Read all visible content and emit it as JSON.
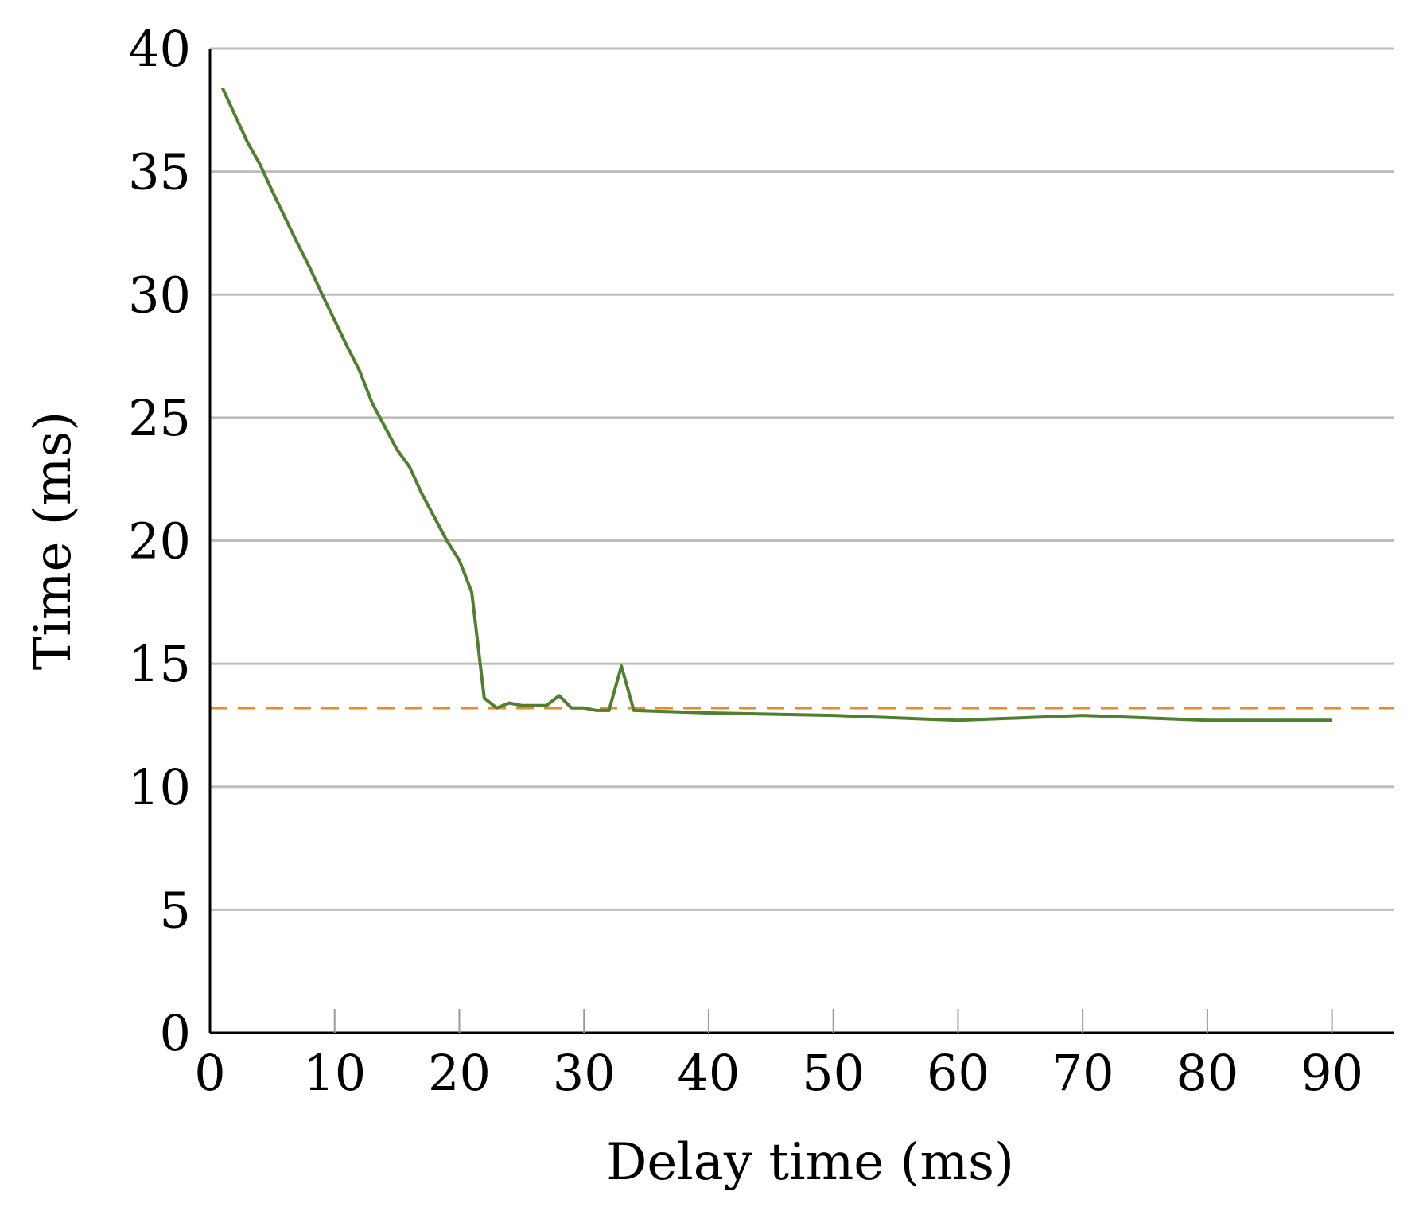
{
  "chart_data": {
    "type": "line",
    "title": "",
    "xlabel": "Delay time (ms)",
    "ylabel": "Time (ms)",
    "xlim": [
      0,
      95
    ],
    "ylim": [
      0,
      40
    ],
    "xticks": [
      0,
      10,
      20,
      30,
      40,
      50,
      60,
      70,
      80,
      90
    ],
    "yticks": [
      0,
      5,
      10,
      15,
      20,
      25,
      30,
      35,
      40
    ],
    "xtick_labels": [
      "0",
      "10",
      "20",
      "30",
      "40",
      "50",
      "60",
      "70",
      "80",
      "90"
    ],
    "ytick_labels": [
      "0",
      "5",
      "10",
      "15",
      "20",
      "25",
      "30",
      "35",
      "40"
    ],
    "grid": "horizontal",
    "series": [
      {
        "color": "#4f7f2f",
        "x": [
          1,
          3,
          4,
          5,
          7,
          8,
          9,
          11,
          12,
          13,
          15,
          16,
          17,
          19,
          20,
          21,
          22,
          23,
          24,
          25,
          26,
          27,
          28,
          29,
          30,
          31,
          32,
          33,
          34,
          40,
          50,
          60,
          70,
          80,
          90
        ],
        "y": [
          38.4,
          36.2,
          35.3,
          34.2,
          32.1,
          31.1,
          30.0,
          27.9,
          26.9,
          25.6,
          23.7,
          23.0,
          21.9,
          20.0,
          19.2,
          17.9,
          13.6,
          13.2,
          13.4,
          13.3,
          13.3,
          13.3,
          13.7,
          13.2,
          13.2,
          13.1,
          13.1,
          14.9,
          13.1,
          13.0,
          12.9,
          12.7,
          12.9,
          12.7,
          12.7
        ]
      }
    ],
    "reference_line": {
      "y": 13.2,
      "color": "#f08a1e",
      "style": "dashed"
    }
  }
}
